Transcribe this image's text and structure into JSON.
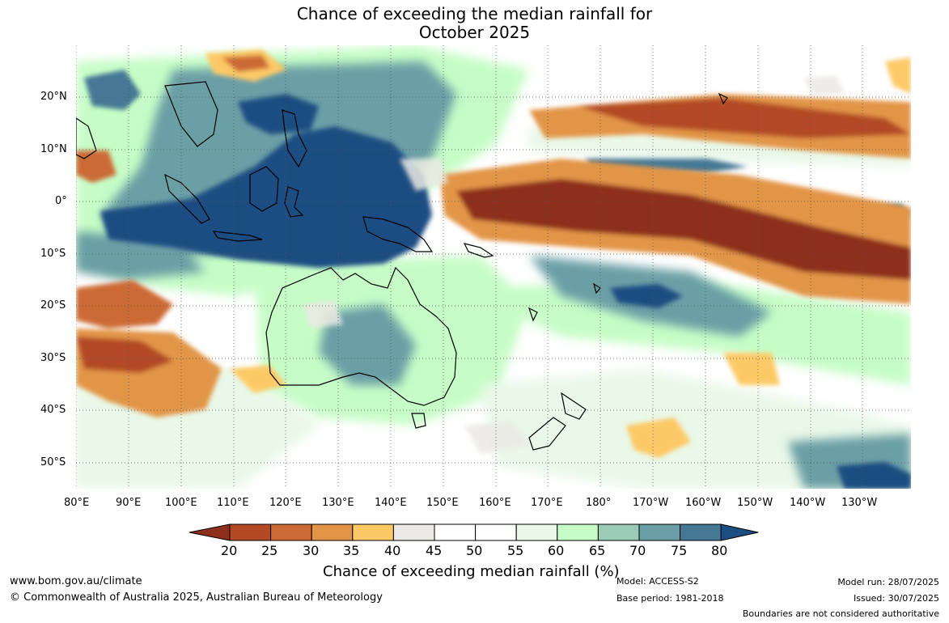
{
  "title": {
    "line1": "Chance of exceeding the median rainfall for",
    "line2": "October 2025"
  },
  "axes": {
    "lat_labels": [
      "20°N",
      "10°N",
      "0°",
      "10°S",
      "20°S",
      "30°S",
      "40°S",
      "50°S"
    ],
    "lon_labels": [
      "80°E",
      "90°E",
      "100°E",
      "110°E",
      "120°E",
      "130°E",
      "140°E",
      "150°E",
      "160°E",
      "170°E",
      "180°",
      "170°W",
      "160°W",
      "150°W",
      "140°W",
      "130°W"
    ]
  },
  "colorbar": {
    "ticks": [
      "20",
      "25",
      "30",
      "35",
      "40",
      "45",
      "50",
      "55",
      "60",
      "65",
      "70",
      "75",
      "80"
    ],
    "colors": [
      "#8e2f1b",
      "#b34a25",
      "#cc6a35",
      "#e29546",
      "#fdc966",
      "#ebe9e4",
      "#ffffff",
      "#ffffff",
      "#e9f8e8",
      "#c6fdc6",
      "#9bcbb5",
      "#6b9fa6",
      "#447894",
      "#1b4e82"
    ],
    "label": "Chance of exceeding median rainfall (%)"
  },
  "footer": {
    "website": "www.bom.gov.au/climate",
    "copyright": "© Commonwealth of Australia 2025, Australian Bureau of Meteorology",
    "model": "Model: ACCESS-S2",
    "base_period": "Base period: 1981-2018",
    "model_run": "Model run: 28/07/2025",
    "issued": "Issued: 30/07/2025",
    "disclaimer": "Boundaries are not considered authoritative"
  }
}
